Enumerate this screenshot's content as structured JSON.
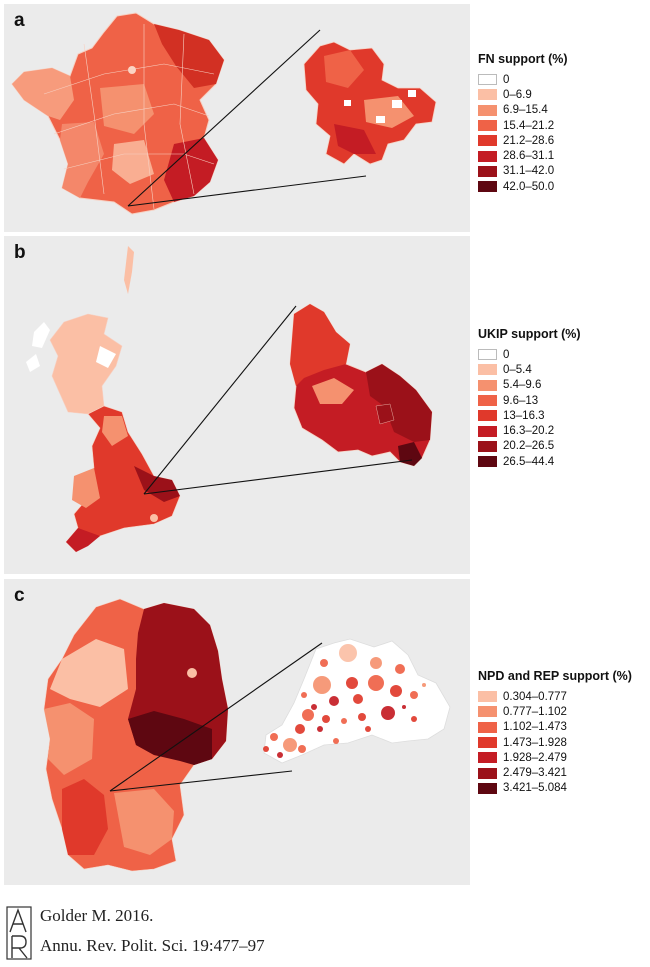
{
  "panels": [
    {
      "letter": "a",
      "legend_title": "FN support (%)",
      "legend": [
        {
          "label": "0",
          "color": "#ffffff"
        },
        {
          "label": "0–6.9",
          "color": "#fbbfa5"
        },
        {
          "label": "6.9–15.4",
          "color": "#f5916f"
        },
        {
          "label": "15.4–21.2",
          "color": "#ef6247"
        },
        {
          "label": "21.2–28.6",
          "color": "#e0392b"
        },
        {
          "label": "28.6–31.1",
          "color": "#c41c24"
        },
        {
          "label": "31.1–42.0",
          "color": "#9b1119"
        },
        {
          "label": "42.0–50.0",
          "color": "#5e0711"
        }
      ]
    },
    {
      "letter": "b",
      "legend_title": "UKIP support (%)",
      "legend": [
        {
          "label": "0",
          "color": "#ffffff"
        },
        {
          "label": "0–5.4",
          "color": "#fbbfa5"
        },
        {
          "label": "5.4–9.6",
          "color": "#f5916f"
        },
        {
          "label": "9.6–13",
          "color": "#ef6247"
        },
        {
          "label": "13–16.3",
          "color": "#e0392b"
        },
        {
          "label": "16.3–20.2",
          "color": "#c41c24"
        },
        {
          "label": "20.2–26.5",
          "color": "#9b1119"
        },
        {
          "label": "26.5–44.4",
          "color": "#5e0711"
        }
      ]
    },
    {
      "letter": "c",
      "legend_title": "NPD and REP support (%)",
      "legend": [
        {
          "label": "0.304–0.777",
          "color": "#fbbfa5"
        },
        {
          "label": "0.777–1.102",
          "color": "#f5916f"
        },
        {
          "label": "1.102–1.473",
          "color": "#ef6247"
        },
        {
          "label": "1.473–1.928",
          "color": "#e0392b"
        },
        {
          "label": "1.928–2.479",
          "color": "#c41c24"
        },
        {
          "label": "2.479–3.421",
          "color": "#9b1119"
        },
        {
          "label": "3.421–5.084",
          "color": "#5e0711"
        }
      ]
    }
  ],
  "citation": {
    "line1": "Golder M. 2016.",
    "line2": "Annu. Rev. Polit. Sci. 19:477–97"
  }
}
